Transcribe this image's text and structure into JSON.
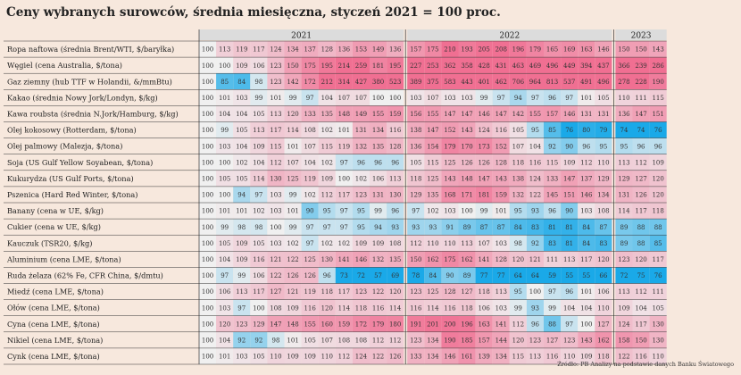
{
  "title": "Ceny wybranych surowców, średnia miesięczna, styczeń 2021 = 100 proc.",
  "source": "Źródło: PB Analizy na podstawie danych Banku Światowego",
  "colors": {
    "background": "#f7e8dd",
    "high": "#f06f92",
    "neutral": "#f0f0f0",
    "low": "#1aa9e8",
    "header": "#dcdcdc"
  },
  "chart_data": {
    "type": "heatmap",
    "title": "Ceny wybranych surowców, średnia miesięczna, styczeń 2021 = 100 proc.",
    "years": [
      {
        "label": "2021",
        "months": 12
      },
      {
        "label": "2022",
        "months": 12
      },
      {
        "label": "2023",
        "months": 3
      }
    ],
    "rows": [
      {
        "label": "Ropa naftowa (średnia Brent/WTI, $/baryłka)",
        "values": [
          100,
          113,
          119,
          117,
          124,
          134,
          137,
          128,
          136,
          153,
          149,
          136,
          157,
          175,
          210,
          193,
          205,
          208,
          196,
          179,
          165,
          169,
          163,
          146,
          150,
          150,
          143
        ]
      },
      {
        "label": "Węgiel (cena Australia, $/tona)",
        "values": [
          100,
          100,
          109,
          106,
          123,
          150,
          175,
          195,
          214,
          259,
          181,
          195,
          227,
          253,
          362,
          358,
          428,
          431,
          463,
          469,
          496,
          449,
          394,
          437,
          366,
          239,
          286
        ]
      },
      {
        "label": "Gaz ziemny (hub TTF w Holandii, &/mmBtu)",
        "values": [
          100,
          85,
          84,
          98,
          123,
          142,
          172,
          212,
          314,
          427,
          380,
          523,
          389,
          375,
          583,
          443,
          401,
          462,
          706,
          964,
          813,
          537,
          491,
          496,
          278,
          228,
          190
        ]
      },
      {
        "label": "Kakao (średnia Nowy Jork/Londyn, $/kg)",
        "values": [
          100,
          101,
          103,
          99,
          101,
          99,
          97,
          104,
          107,
          107,
          100,
          100,
          103,
          107,
          103,
          103,
          99,
          97,
          94,
          97,
          96,
          97,
          101,
          105,
          110,
          111,
          115
        ]
      },
      {
        "label": "Kawa roubsta (średnia N.Jork/Hamburg, $/kg)",
        "values": [
          100,
          104,
          104,
          105,
          113,
          120,
          133,
          135,
          148,
          149,
          155,
          159,
          156,
          155,
          147,
          147,
          146,
          147,
          142,
          155,
          157,
          146,
          131,
          131,
          136,
          147,
          151
        ]
      },
      {
        "label": "Olej kokosowy (Rotterdam, $/tona)",
        "values": [
          100,
          99,
          105,
          113,
          117,
          114,
          108,
          102,
          101,
          131,
          134,
          116,
          138,
          147,
          152,
          143,
          124,
          116,
          105,
          95,
          85,
          76,
          80,
          79,
          74,
          74,
          76
        ]
      },
      {
        "label": "Olej palmowy (Malezja, $/tona)",
        "values": [
          100,
          103,
          104,
          109,
          115,
          101,
          107,
          115,
          119,
          132,
          135,
          128,
          136,
          154,
          179,
          170,
          173,
          152,
          107,
          104,
          92,
          90,
          96,
          95,
          95,
          96,
          96
        ]
      },
      {
        "label": "Soja (US Gulf Yellow Soyabean, $/tona)",
        "values": [
          100,
          100,
          102,
          104,
          112,
          107,
          104,
          102,
          97,
          96,
          96,
          96,
          105,
          115,
          125,
          126,
          126,
          128,
          118,
          116,
          115,
          109,
          112,
          110,
          113,
          112,
          109
        ]
      },
      {
        "label": "Kukurydza (US Gulf Ports, $/tona)",
        "values": [
          100,
          105,
          105,
          114,
          130,
          125,
          119,
          109,
          100,
          102,
          106,
          113,
          118,
          125,
          143,
          148,
          147,
          143,
          138,
          124,
          133,
          147,
          137,
          129,
          129,
          127,
          120
        ]
      },
      {
        "label": "Pszenica (Hard Red Winter, $/tona)",
        "values": [
          100,
          100,
          94,
          97,
          103,
          99,
          102,
          112,
          117,
          123,
          131,
          130,
          129,
          135,
          168,
          171,
          181,
          159,
          132,
          122,
          145,
          151,
          146,
          134,
          131,
          126,
          120
        ]
      },
      {
        "label": "Banany (cena w UE, $/kg)",
        "values": [
          100,
          101,
          101,
          102,
          103,
          101,
          90,
          95,
          97,
          95,
          99,
          96,
          97,
          102,
          103,
          100,
          99,
          101,
          95,
          93,
          96,
          90,
          103,
          108,
          114,
          117,
          118
        ]
      },
      {
        "label": "Cukier (cena w UE, $/kg)",
        "values": [
          100,
          99,
          98,
          98,
          100,
          99,
          97,
          97,
          97,
          95,
          94,
          93,
          93,
          93,
          91,
          89,
          87,
          87,
          84,
          83,
          81,
          81,
          84,
          87,
          89,
          88,
          88
        ]
      },
      {
        "label": "Kauczuk (TSR20, $/kg)",
        "values": [
          100,
          105,
          109,
          105,
          103,
          102,
          97,
          102,
          102,
          109,
          109,
          108,
          112,
          110,
          110,
          113,
          107,
          103,
          98,
          92,
          83,
          81,
          84,
          83,
          89,
          88,
          85
        ]
      },
      {
        "label": "Aluminium (cena LME, $/tona)",
        "values": [
          100,
          104,
          109,
          116,
          121,
          122,
          125,
          130,
          141,
          146,
          132,
          135,
          150,
          162,
          175,
          162,
          141,
          128,
          120,
          121,
          111,
          113,
          117,
          120,
          123,
          120,
          117
        ]
      },
      {
        "label": "Ruda żelaza (62% Fe, CFR China, $/dmtu)",
        "values": [
          100,
          97,
          99,
          106,
          122,
          126,
          126,
          96,
          73,
          72,
          57,
          69,
          78,
          84,
          90,
          89,
          77,
          77,
          64,
          64,
          59,
          55,
          55,
          66,
          72,
          75,
          76
        ]
      },
      {
        "label": "Miedź (cena LME, $/tona)",
        "values": [
          100,
          106,
          113,
          117,
          127,
          121,
          119,
          118,
          117,
          123,
          122,
          120,
          123,
          125,
          128,
          127,
          118,
          113,
          95,
          100,
          97,
          96,
          101,
          106,
          113,
          112,
          111
        ]
      },
      {
        "label": "Ołów (cena LME, $/tona)",
        "values": [
          100,
          103,
          97,
          100,
          108,
          109,
          116,
          120,
          114,
          118,
          116,
          114,
          116,
          114,
          116,
          118,
          106,
          103,
          99,
          93,
          99,
          104,
          104,
          110,
          109,
          104,
          105
        ]
      },
      {
        "label": "Cyna (cena LME, $/tona)",
        "values": [
          100,
          120,
          123,
          129,
          147,
          148,
          155,
          160,
          159,
          172,
          179,
          180,
          191,
          201,
          200,
          196,
          163,
          141,
          112,
          96,
          88,
          97,
          100,
          127,
          124,
          117,
          130
        ]
      },
      {
        "label": "Nikiel (cena LME, $/tona)",
        "values": [
          100,
          104,
          92,
          92,
          98,
          101,
          105,
          107,
          108,
          108,
          112,
          112,
          123,
          134,
          190,
          185,
          157,
          144,
          120,
          123,
          127,
          123,
          143,
          162,
          158,
          150,
          130
        ]
      },
      {
        "label": "Cynk (cena LME, $/tona)",
        "values": [
          100,
          101,
          103,
          105,
          110,
          109,
          109,
          110,
          112,
          124,
          122,
          126,
          133,
          134,
          146,
          161,
          139,
          134,
          115,
          113,
          116,
          110,
          109,
          118,
          122,
          116,
          110
        ]
      }
    ]
  }
}
